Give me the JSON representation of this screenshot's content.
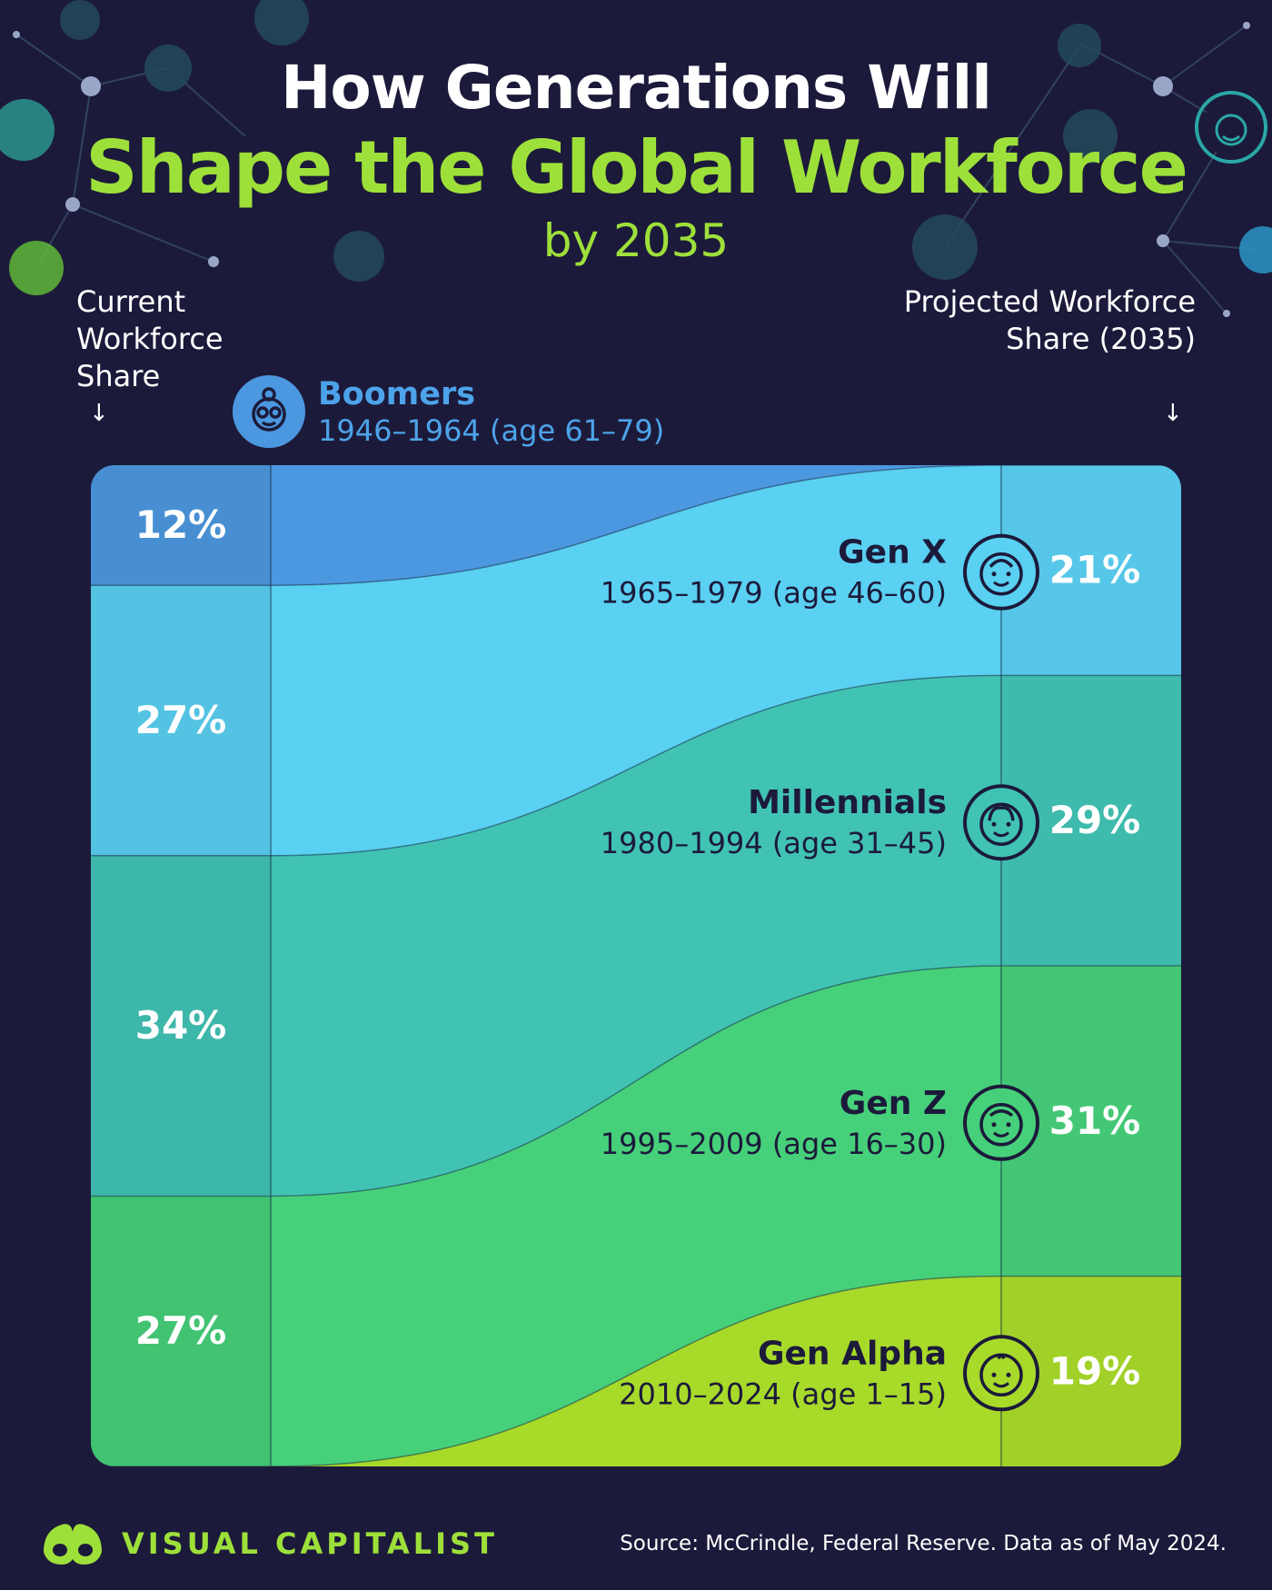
{
  "title": {
    "line1": "How Generations Will",
    "line2": "Shape the Global Workforce",
    "line3": "by 2035"
  },
  "axis": {
    "left_label": "Current Workforce Share",
    "right_label": "Projected Workforce Share (2035)"
  },
  "colors": {
    "background": "#1c1a3a",
    "accent": "#9ee03a",
    "boomers": "#4c98e0",
    "genx": "#5ad0f2",
    "millennials": "#41c3b4",
    "genz": "#46d07a",
    "genalpha": "#a8da2a"
  },
  "chart_data": {
    "type": "area",
    "title": "How Generations Will Shape the Global Workforce by 2035",
    "x": [
      "Current",
      "2035"
    ],
    "xlabel_left": "Current Workforce Share",
    "xlabel_right": "Projected Workforce Share (2035)",
    "unit": "%",
    "series": [
      {
        "name": "Boomers",
        "years": "1946–1964 (age 61–79)",
        "icon": "boomer-face-icon",
        "current": 12,
        "projected": 0,
        "current_label": "12%",
        "projected_label": "",
        "color": "#4c98e0"
      },
      {
        "name": "Gen X",
        "years": "1965–1979 (age 46–60)",
        "icon": "genx-face-icon",
        "current": 27,
        "projected": 21,
        "current_label": "27%",
        "projected_label": "21%",
        "color": "#5ad0f2"
      },
      {
        "name": "Millennials",
        "years": "1980–1994 (age 31–45)",
        "icon": "millennial-face-icon",
        "current": 34,
        "projected": 29,
        "current_label": "34%",
        "projected_label": "29%",
        "color": "#41c3b4"
      },
      {
        "name": "Gen Z",
        "years": "1995–2009 (age 16–30)",
        "icon": "genz-face-icon",
        "current": 27,
        "projected": 31,
        "current_label": "27%",
        "projected_label": "31%",
        "color": "#46d07a"
      },
      {
        "name": "Gen Alpha",
        "years": "2010–2024 (age 1–15)",
        "icon": "genalpha-face-icon",
        "current": 0,
        "projected": 19,
        "current_label": "",
        "projected_label": "19%",
        "color": "#a8da2a"
      }
    ]
  },
  "footer": {
    "brand": "VISUAL CAPITALIST",
    "source": "Source: McCrindle, Federal Reserve. Data as of May 2024."
  }
}
